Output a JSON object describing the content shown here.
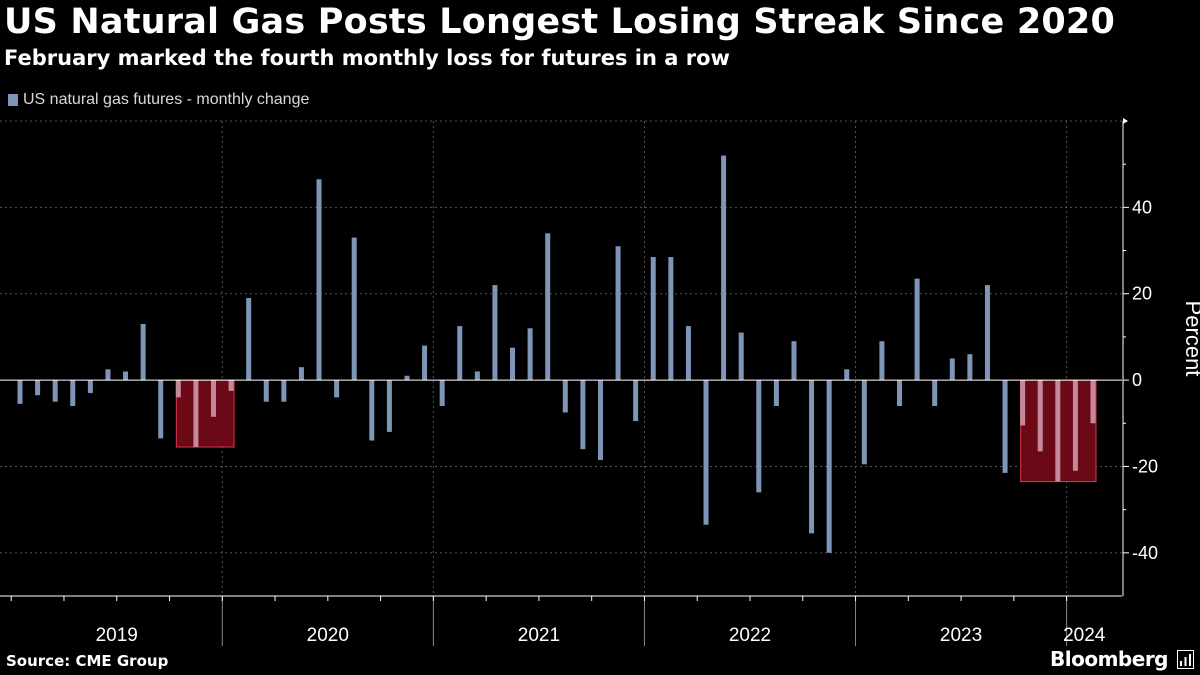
{
  "title": "US Natural Gas Posts Longest Losing Streak Since 2020",
  "subtitle": "February marked the fourth monthly loss for futures in a row",
  "source": "Source: CME Group",
  "brand": "Bloomberg",
  "colors": {
    "bar": "#7f95b8",
    "highlight_fill": "#6b0a16",
    "highlight_border": "#d8384c",
    "background": "#000000",
    "grid": "#555555",
    "text": "#ffffff"
  },
  "chart_data": {
    "type": "bar",
    "series": [
      {
        "name": "US natural gas futures - monthly change",
        "x": [
          "2019-01",
          "2019-02",
          "2019-03",
          "2019-04",
          "2019-05",
          "2019-06",
          "2019-07",
          "2019-08",
          "2019-09",
          "2019-10",
          "2019-11",
          "2019-12",
          "2020-01",
          "2020-02",
          "2020-03",
          "2020-04",
          "2020-05",
          "2020-06",
          "2020-07",
          "2020-08",
          "2020-09",
          "2020-10",
          "2020-11",
          "2020-12",
          "2021-01",
          "2021-02",
          "2021-03",
          "2021-04",
          "2021-05",
          "2021-06",
          "2021-07",
          "2021-08",
          "2021-09",
          "2021-10",
          "2021-11",
          "2021-12",
          "2022-01",
          "2022-02",
          "2022-03",
          "2022-04",
          "2022-05",
          "2022-06",
          "2022-07",
          "2022-08",
          "2022-09",
          "2022-10",
          "2022-11",
          "2022-12",
          "2023-01",
          "2023-02",
          "2023-03",
          "2023-04",
          "2023-05",
          "2023-06",
          "2023-07",
          "2023-08",
          "2023-09",
          "2023-10",
          "2023-11",
          "2023-12",
          "2024-01",
          "2024-02"
        ],
        "values": [
          -5.5,
          -3.5,
          -5,
          -6,
          -3,
          2.5,
          2,
          13,
          -13.5,
          -4,
          -15.5,
          -8.5,
          -2.5,
          19,
          -5,
          -5,
          3,
          46.5,
          -4,
          33,
          -14,
          -12,
          1,
          8,
          -6,
          12.5,
          2,
          22,
          7.5,
          12,
          34,
          -7.5,
          -16,
          -18.5,
          31,
          -9.5,
          28.5,
          28.5,
          12.5,
          -33.5,
          52,
          11,
          -26,
          -6,
          9,
          -35.5,
          -40,
          2.5,
          -19.5,
          9,
          -6,
          23.5,
          -6,
          5,
          6,
          22,
          -21.5,
          -10.5,
          -16.5,
          -23.5,
          -21,
          -10
        ]
      }
    ],
    "highlight_groups": [
      {
        "start": "2019-10",
        "end": "2020-01",
        "value": -15.5
      },
      {
        "start": "2023-10",
        "end": "2024-02",
        "value": -23.5
      }
    ],
    "x_tick_labels": [
      "2019",
      "2020",
      "2021",
      "2022",
      "2023",
      "2024"
    ],
    "ylabel": "Percent",
    "y_ticks": [
      -40,
      -20,
      0,
      20,
      40
    ],
    "ylim": [
      -50,
      60
    ],
    "grid": true,
    "legend_position": "top-left"
  }
}
